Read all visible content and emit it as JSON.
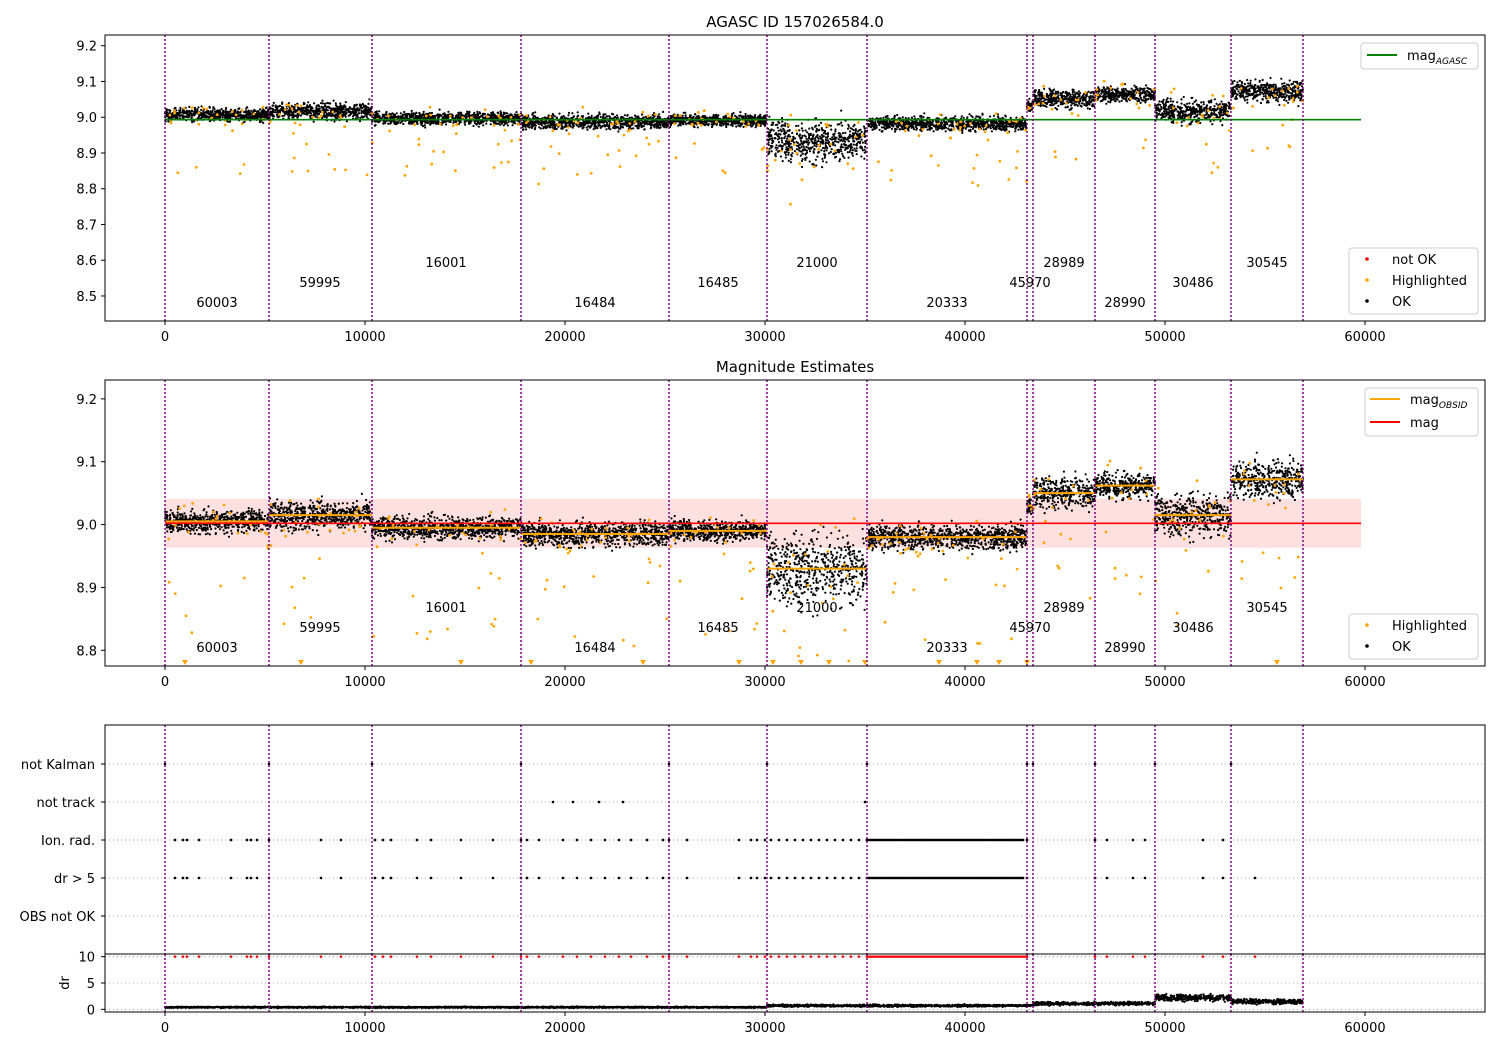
{
  "chart_data": [
    {
      "type": "scatter",
      "title": "AGASC ID 157026584.0",
      "xlim": [
        -3000,
        66000
      ],
      "ylim": [
        8.43,
        9.23
      ],
      "xticks": [
        0,
        10000,
        20000,
        30000,
        40000,
        50000,
        60000
      ],
      "yticks": [
        8.5,
        8.6,
        8.7,
        8.8,
        8.9,
        9.0,
        9.1,
        9.2
      ],
      "obs_boundaries": [
        0,
        5200,
        10350,
        17800,
        25200,
        30100,
        35100,
        43100,
        43400,
        46500,
        49500,
        53300,
        56900
      ],
      "obsids": [
        {
          "label": "60003",
          "x": 2600,
          "row": 0
        },
        {
          "label": "59995",
          "x": 7750,
          "row": 1
        },
        {
          "label": "16001",
          "x": 14050,
          "row": 2
        },
        {
          "label": "16484",
          "x": 21500,
          "row": 0
        },
        {
          "label": "16485",
          "x": 27650,
          "row": 1
        },
        {
          "label": "21000",
          "x": 32600,
          "row": 2
        },
        {
          "label": "20333",
          "x": 39100,
          "row": 0
        },
        {
          "label": "45970",
          "x": 43250,
          "row": 1
        },
        {
          "label": "28989",
          "x": 44950,
          "row": 2
        },
        {
          "label": "28990",
          "x": 48000,
          "row": 0
        },
        {
          "label": "30486",
          "x": 51400,
          "row": 1
        },
        {
          "label": "30545",
          "x": 55100,
          "row": 2
        }
      ],
      "segments": [
        {
          "x0": 0,
          "x1": 5200,
          "mean": 9.005,
          "spread": 0.022
        },
        {
          "x0": 5200,
          "x1": 10350,
          "mean": 9.015,
          "spread": 0.028
        },
        {
          "x0": 10350,
          "x1": 17800,
          "mean": 8.995,
          "spread": 0.022
        },
        {
          "x0": 17800,
          "x1": 25200,
          "mean": 8.985,
          "spread": 0.024
        },
        {
          "x0": 25200,
          "x1": 30100,
          "mean": 8.99,
          "spread": 0.02
        },
        {
          "x0": 30100,
          "x1": 35100,
          "mean": 8.93,
          "spread": 0.07
        },
        {
          "x0": 35100,
          "x1": 43100,
          "mean": 8.98,
          "spread": 0.024
        },
        {
          "x0": 43100,
          "x1": 43400,
          "mean": 9.03,
          "spread": 0.02
        },
        {
          "x0": 43400,
          "x1": 46500,
          "mean": 9.05,
          "spread": 0.03
        },
        {
          "x0": 46500,
          "x1": 49500,
          "mean": 9.062,
          "spread": 0.025
        },
        {
          "x0": 49500,
          "x1": 53300,
          "mean": 9.015,
          "spread": 0.04
        },
        {
          "x0": 53300,
          "x1": 56900,
          "mean": 9.072,
          "spread": 0.035
        }
      ],
      "series": [
        {
          "name": "mag_AGASC",
          "type": "hline",
          "y": 8.993,
          "x0": 0,
          "x1": 59800,
          "color": "#008000"
        }
      ],
      "scatter_legend": [
        "not OK",
        "Highlighted",
        "OK"
      ],
      "legend_position": "upper-right and lower-right",
      "grid": false
    },
    {
      "type": "scatter",
      "title": "Magnitude Estimates",
      "xlim": [
        -3000,
        66000
      ],
      "ylim": [
        8.775,
        9.23
      ],
      "xticks": [
        0,
        10000,
        20000,
        30000,
        40000,
        50000,
        60000
      ],
      "yticks": [
        8.8,
        8.9,
        9.0,
        9.1,
        9.2
      ],
      "series": [
        {
          "name": "mag_OBSID",
          "type": "step",
          "color": "#ffa500"
        },
        {
          "name": "mag",
          "type": "hline",
          "y": 9.002,
          "band": [
            8.963,
            9.041
          ],
          "x0": 0,
          "x1": 59800,
          "color": "#ff0000"
        }
      ],
      "scatter_legend": [
        "Highlighted",
        "OK"
      ],
      "offscale_markers_x": [
        1000,
        6800,
        14800,
        18300,
        23900,
        28700,
        30400,
        31800,
        33200,
        35000,
        38700,
        40600,
        41700,
        43100,
        55600
      ],
      "legend_position": "upper-right and lower-right",
      "grid": false
    },
    {
      "type": "scatter",
      "title": "",
      "categories": [
        "not Kalman",
        "not track",
        "Ion. rad.",
        "dr > 5",
        "OBS not OK"
      ],
      "flags": {
        "not Kalman": [
          0,
          5200,
          10350,
          17800,
          25200,
          30100,
          35100,
          43100,
          43400,
          46500,
          49500,
          53300
        ],
        "not track": [
          19400,
          20400,
          21700,
          22900,
          35000
        ],
        "Ion. rad.": [
          500,
          900,
          1100,
          1700,
          3300,
          4100,
          4300,
          4600,
          5200,
          7800,
          8800,
          10500,
          10900,
          11300,
          12600,
          13300,
          14800,
          16400,
          17800,
          18100,
          18700,
          19900,
          20600,
          21300,
          22000,
          22700,
          23300,
          24100,
          24900,
          25200,
          26100,
          28700,
          29300,
          29600,
          30000,
          30300,
          30700,
          31100,
          31500,
          31900,
          32300,
          32700,
          33100,
          33500,
          33900,
          34300,
          34700,
          35100,
          43100,
          46500,
          47100,
          48400,
          49000,
          51900,
          52900
        ],
        "dr > 5": [
          500,
          900,
          1100,
          1700,
          3300,
          4100,
          4300,
          4600,
          5200,
          7800,
          8800,
          10500,
          10900,
          11300,
          12600,
          13300,
          14800,
          16400,
          17800,
          18100,
          18700,
          19900,
          20600,
          21300,
          22000,
          22700,
          23300,
          24100,
          24900,
          25200,
          26100,
          28700,
          29300,
          29600,
          30000,
          30300,
          30700,
          31100,
          31500,
          31900,
          32300,
          32700,
          33100,
          33500,
          33900,
          34300,
          34700,
          35100,
          43100,
          46500,
          47100,
          48400,
          49000,
          51900,
          52900,
          54500
        ],
        "OBS not OK": []
      },
      "ion_dense_range": [
        35200,
        43000
      ],
      "xlim": [
        -3000,
        66000
      ],
      "grid": true
    },
    {
      "type": "scatter",
      "title": "",
      "ylabel": "dr",
      "ylim": [
        -0.5,
        10.5
      ],
      "yticks": [
        0,
        5,
        10
      ],
      "xticks": [
        0,
        10000,
        20000,
        30000,
        40000,
        50000,
        60000
      ],
      "xlim": [
        -3000,
        66000
      ],
      "base_levels": [
        {
          "x0": 0,
          "x1": 30100,
          "dr": 0.4
        },
        {
          "x0": 30100,
          "x1": 43400,
          "dr": 0.7
        },
        {
          "x0": 43400,
          "x1": 49500,
          "dr": 1.1
        },
        {
          "x0": 49500,
          "x1": 53300,
          "dr": 2.2
        },
        {
          "x0": 53300,
          "x1": 56900,
          "dr": 1.5
        }
      ],
      "dr_equals_10_range": [
        35200,
        43000
      ],
      "grid": true
    }
  ],
  "colors": {
    "ok": "#000000",
    "highlighted": "#ffa500",
    "not_ok": "#ff0000",
    "agasc_line": "#008000",
    "mag_line": "#ff0000",
    "obs_boundary": "#800080"
  }
}
